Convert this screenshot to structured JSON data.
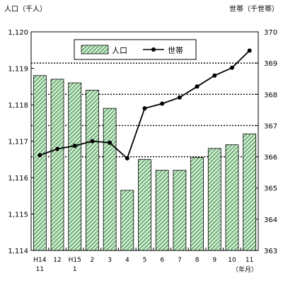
{
  "chart_data": {
    "type": "bar",
    "left_unit_label": "人口（千人）",
    "right_unit_label": "世帯（千世帯）",
    "x_unit_label": "（年月）",
    "categories": [
      [
        "H14",
        "11"
      ],
      [
        "12",
        ""
      ],
      [
        "H15",
        "1"
      ],
      [
        "2",
        ""
      ],
      [
        "3",
        ""
      ],
      [
        "4",
        ""
      ],
      [
        "5",
        ""
      ],
      [
        "6",
        ""
      ],
      [
        "7",
        ""
      ],
      [
        "8",
        ""
      ],
      [
        "9",
        ""
      ],
      [
        "10",
        ""
      ],
      [
        "11",
        ""
      ]
    ],
    "left_axis": {
      "range": [
        1114,
        1120
      ],
      "ticks": [
        "1,114",
        "1,115",
        "1,116",
        "1,117",
        "1,118",
        "1,119",
        "1,120"
      ]
    },
    "right_axis": {
      "range": [
        363,
        370
      ],
      "ticks": [
        "363",
        "364",
        "365",
        "366",
        "367",
        "368",
        "369",
        "370"
      ]
    },
    "grid_lines_right_axis": [
      366,
      367,
      368,
      369
    ],
    "series": [
      {
        "name": "人口",
        "kind": "bar",
        "axis": "left",
        "color": "#33a055",
        "values": [
          1118.8,
          1118.7,
          1118.6,
          1118.4,
          1117.9,
          1115.65,
          1116.5,
          1116.2,
          1116.2,
          1116.55,
          1116.8,
          1116.9,
          1117.2
        ]
      },
      {
        "name": "世帯",
        "kind": "line",
        "axis": "right",
        "color": "#000000",
        "values": [
          366.05,
          366.25,
          366.35,
          366.5,
          366.45,
          365.95,
          367.55,
          367.7,
          367.9,
          368.25,
          368.6,
          368.85,
          369.4
        ]
      }
    ],
    "legend": {
      "position": "top-right"
    }
  }
}
